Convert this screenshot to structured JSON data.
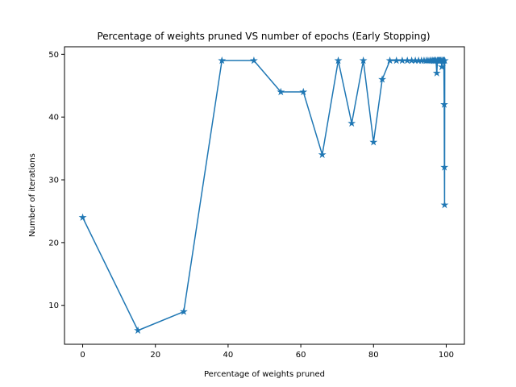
{
  "chart_data": {
    "type": "line",
    "title": "Percentage of weights pruned VS number of epochs (Early Stopping)",
    "xlabel": "Percentage of weights pruned",
    "ylabel": "Number of iterations",
    "xlim": [
      -5,
      105
    ],
    "ylim": [
      3.8,
      51.2
    ],
    "xticks": [
      0,
      20,
      40,
      60,
      80,
      100
    ],
    "yticks": [
      10,
      20,
      30,
      40,
      50
    ],
    "grid": false,
    "marker": "star",
    "color": "#1f77b4",
    "series": [
      {
        "x": [
          0.0,
          15.2,
          27.8,
          38.3,
          47.1,
          54.5,
          60.7,
          65.9,
          70.3,
          74.0,
          77.2,
          80.0,
          82.4,
          84.5,
          86.3,
          87.9,
          89.3,
          90.5,
          91.5,
          92.4,
          93.2,
          93.9,
          94.5,
          95.0,
          95.5,
          95.9,
          96.3,
          96.6,
          96.9,
          97.2,
          97.4,
          97.6,
          97.8,
          98.0,
          98.2,
          98.4,
          98.6,
          98.8,
          99.0,
          99.2,
          99.35,
          99.45,
          99.5,
          99.55,
          99.6
        ],
        "y": [
          24,
          6,
          9,
          49,
          49,
          44,
          44,
          34,
          49,
          39,
          49,
          36,
          46,
          49,
          49,
          49,
          49,
          49,
          49,
          49,
          49,
          49,
          49,
          49,
          49,
          49,
          49,
          49,
          49,
          49,
          47,
          49,
          49,
          49,
          49,
          49,
          49,
          48,
          49,
          49,
          49,
          42,
          32,
          26,
          49
        ]
      }
    ]
  }
}
